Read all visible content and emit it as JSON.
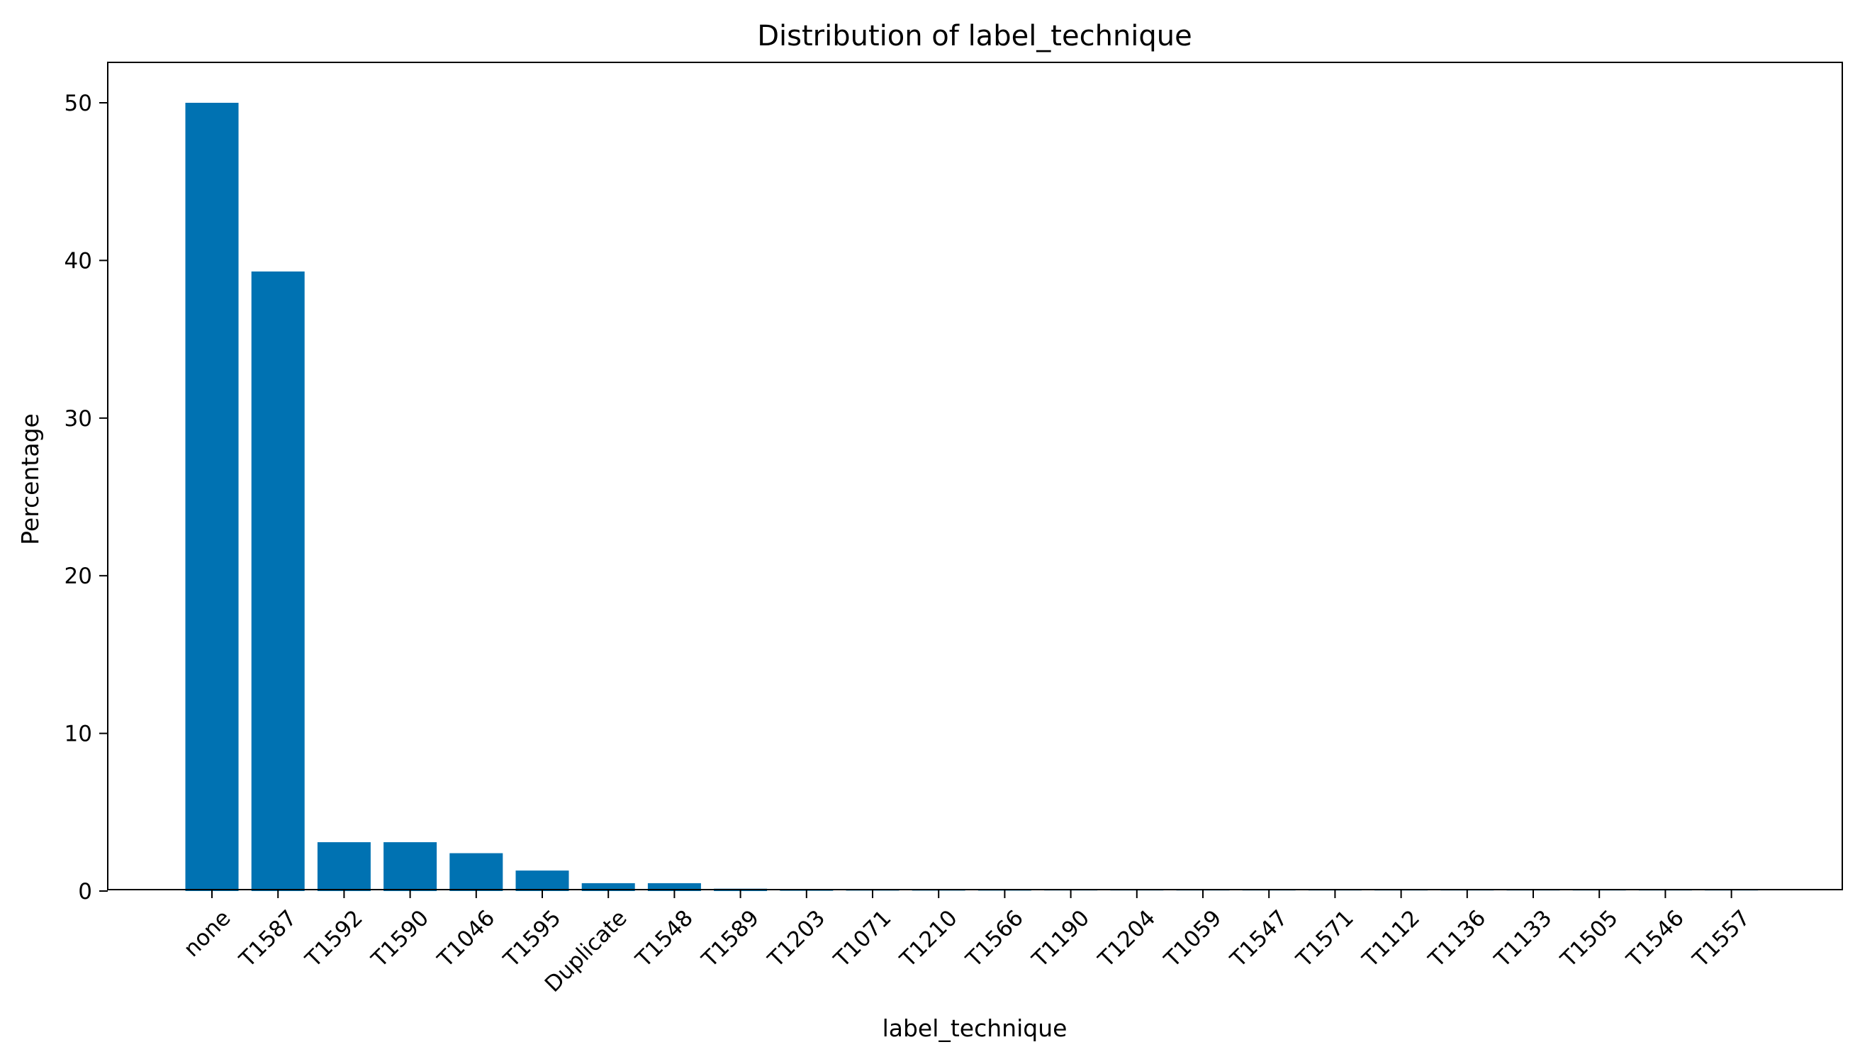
{
  "chart_data": {
    "type": "bar",
    "title": "Distribution of label_technique",
    "xlabel": "label_technique",
    "ylabel": "Percentage",
    "categories": [
      "none",
      "T1587",
      "T1592",
      "T1590",
      "T1046",
      "T1595",
      "Duplicate",
      "T1548",
      "T1589",
      "T1203",
      "T1071",
      "T1210",
      "T1566",
      "T1190",
      "T1204",
      "T1059",
      "T1547",
      "T1571",
      "T1112",
      "T1136",
      "T1133",
      "T1505",
      "T1546",
      "T1557"
    ],
    "values": [
      50.0,
      39.3,
      3.1,
      3.1,
      2.4,
      1.3,
      0.5,
      0.5,
      0.15,
      0.03,
      0.02,
      0.02,
      0.02,
      0.01,
      0.01,
      0.01,
      0.01,
      0.01,
      0.01,
      0.01,
      0.01,
      0.01,
      0.01,
      0.01
    ],
    "ylim": [
      0,
      52.5
    ],
    "yticks": [
      0,
      10,
      20,
      30,
      40,
      50
    ],
    "bar_color": "#0072B2",
    "grid": false,
    "legend": "none"
  }
}
